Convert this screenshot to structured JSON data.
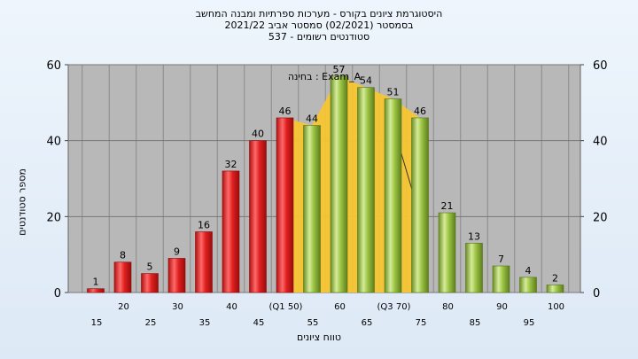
{
  "header": {
    "line1": "היסטוגרמת ציונים בקורס - מערכות ספרתיות ומבנה המחשב",
    "line2": "בסמסטר (02/2021) סמסטר אביב 2021/22",
    "line3": "סטודנטים רשומים - 537"
  },
  "chart_data": {
    "type": "bar",
    "title": "היסטוגרמת ציונים בקורס - מערכות ספרתיות ומבנה המחשב",
    "xlabel": "טווח ציונים",
    "ylabel": "מספר סטודנטים",
    "ylim": [
      0,
      60
    ],
    "yticks": [
      0,
      20,
      40,
      60
    ],
    "grid": true,
    "annotation": "בחינה : Exam_A",
    "categories": [
      "15",
      "20",
      "25",
      "30",
      "35",
      "40",
      "45",
      "(Q1 50)",
      "55",
      "60",
      "65",
      "(Q3 70)",
      "75",
      "80",
      "85",
      "90",
      "95",
      "100"
    ],
    "values": [
      1,
      8,
      5,
      9,
      16,
      32,
      40,
      46,
      44,
      57,
      54,
      51,
      46,
      21,
      13,
      7,
      4,
      2
    ],
    "fail_count": 8,
    "colors": {
      "fail": "#e02020",
      "pass": "#8fbc3c",
      "plot_bg": "#b8b8b8",
      "area": "#f7c531"
    }
  }
}
